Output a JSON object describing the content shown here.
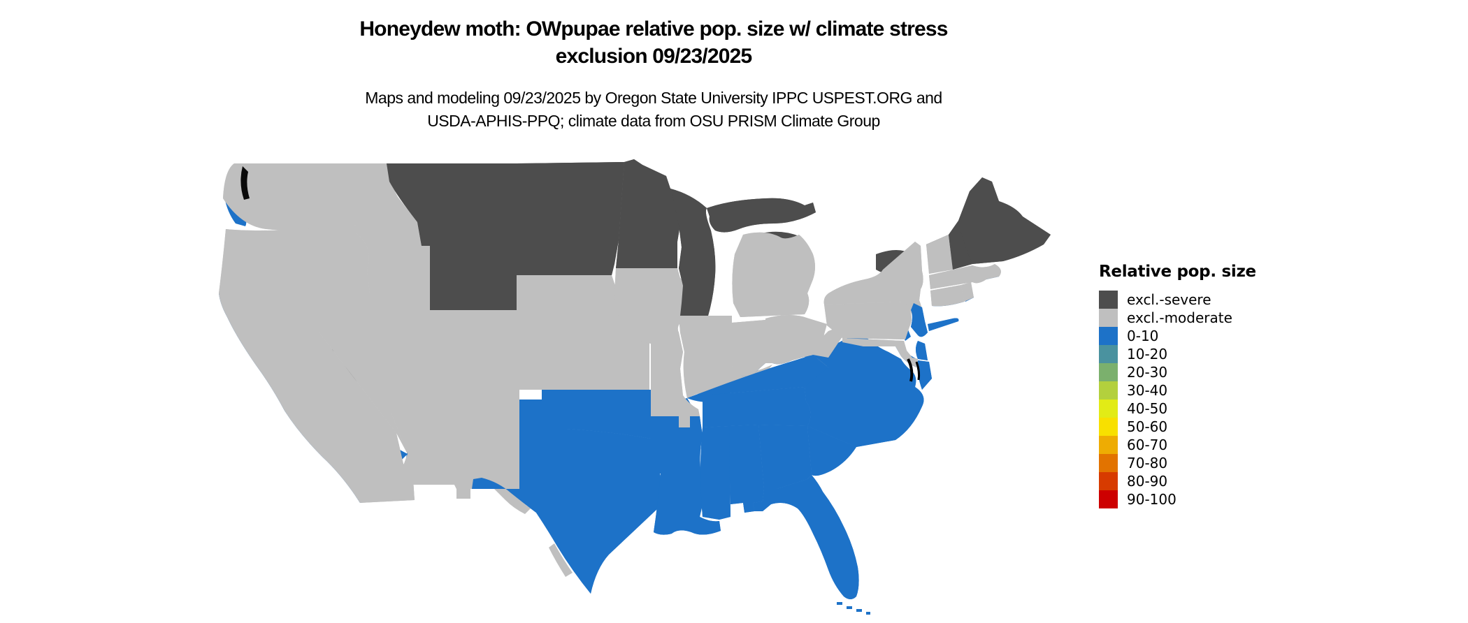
{
  "title": {
    "line1": "Honeydew moth: OWpupae relative pop. size w/ climate stress",
    "line2": "exclusion 09/23/2025"
  },
  "subtitle": {
    "line1": "Maps and modeling 09/23/2025 by Oregon State University IPPC USPEST.ORG and",
    "line2": "USDA-APHIS-PPQ; climate data from OSU PRISM Climate Group"
  },
  "legend": {
    "title": "Relative pop. size",
    "items": [
      {
        "label": "excl.-severe",
        "color": "#4d4d4d"
      },
      {
        "label": "excl.-moderate",
        "color": "#bfbfbf"
      },
      {
        "label": "0-10",
        "color": "#1d72c8"
      },
      {
        "label": "10-20",
        "color": "#4a929f"
      },
      {
        "label": "20-30",
        "color": "#7bb06d"
      },
      {
        "label": "30-40",
        "color": "#b3d03d"
      },
      {
        "label": "40-50",
        "color": "#e2eb16"
      },
      {
        "label": "50-60",
        "color": "#f8e000"
      },
      {
        "label": "60-70",
        "color": "#eeac03"
      },
      {
        "label": "70-80",
        "color": "#e27300"
      },
      {
        "label": "80-90",
        "color": "#d73b00"
      },
      {
        "label": "90-100",
        "color": "#cd0000"
      }
    ]
  },
  "map": {
    "colors": {
      "severe": "#4d4d4d",
      "moderate": "#bfbfbf",
      "low": "#1d72c8",
      "outline": "#000000",
      "water": "#ffffff"
    },
    "state_fill_class": {
      "wa": "moderate",
      "or": "moderate",
      "ca": "moderate",
      "nv": "moderate",
      "id": "moderate",
      "mt": "severe",
      "wy": "severe",
      "ut": "moderate",
      "co": "moderate",
      "az": "moderate",
      "nm": "moderate",
      "nd": "severe",
      "sd": "severe",
      "ne": "moderate",
      "ks": "moderate",
      "ok": "low",
      "tx": "low",
      "mn": "severe",
      "ia": "moderate",
      "mo": "moderate",
      "ar": "low",
      "la": "low",
      "wi": "severe",
      "il": "moderate",
      "ms": "low",
      "mi_up": "severe",
      "mi_lower": "moderate",
      "in": "moderate",
      "ky": "low",
      "tn": "low",
      "al": "low",
      "ga": "low",
      "fl": "low",
      "oh": "moderate",
      "wv": "moderate",
      "va": "low",
      "nc": "low",
      "sc": "low",
      "pa": "moderate",
      "ny": "moderate",
      "me": "severe",
      "vt": "moderate",
      "nh": "severe",
      "ma": "moderate",
      "ct": "moderate",
      "ri": "moderate",
      "nj": "low",
      "de": "low",
      "md": "moderate",
      "delmarva": "low",
      "long_island": "low"
    }
  }
}
